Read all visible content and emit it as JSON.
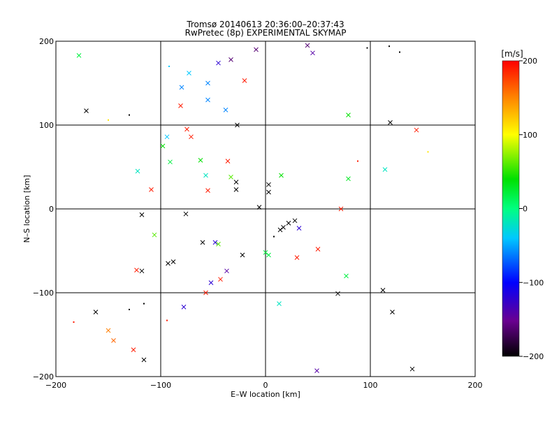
{
  "chart_data": {
    "type": "scatter",
    "title_line1": "Tromsø 20140613 20:36:00–20:37:43",
    "title_line2": "RwPretec (8p) EXPERIMENTAL SKYMAP",
    "xlabel": "E–W location [km]",
    "ylabel": "N–S location [km]",
    "xlim": [
      -200,
      200
    ],
    "ylim": [
      -200,
      200
    ],
    "x_ticks": [
      -200,
      -100,
      0,
      100,
      200
    ],
    "y_ticks": [
      -200,
      -100,
      0,
      100,
      200
    ],
    "x_tick_labels": [
      "−200",
      "−100",
      "0",
      "100",
      "200"
    ],
    "y_tick_labels": [
      "−200",
      "−100",
      "0",
      "100",
      "200"
    ],
    "grid": true,
    "colorbar": {
      "label": "[m/s]",
      "range": [
        -200,
        200
      ],
      "ticks": [
        200,
        100,
        0,
        -100,
        -200
      ],
      "tick_labels": [
        "200",
        "100",
        "0",
        "−100",
        "−200"
      ],
      "colormap": "rainbow: black-purple-blue-cyan-green-yellow-red"
    },
    "markers": [
      {
        "x": -178,
        "y": 183,
        "v": 20,
        "m": "x"
      },
      {
        "x": -171,
        "y": 117,
        "v": -200,
        "m": "x"
      },
      {
        "x": -150,
        "y": 106,
        "v": 110,
        "m": "dot"
      },
      {
        "x": -130,
        "y": 112,
        "v": -200,
        "m": "dot"
      },
      {
        "x": -109,
        "y": 23,
        "v": 190,
        "m": "x"
      },
      {
        "x": -106,
        "y": -31,
        "v": 60,
        "m": "x"
      },
      {
        "x": -118,
        "y": -7,
        "v": -200,
        "m": "x"
      },
      {
        "x": -123,
        "y": -73,
        "v": 190,
        "m": "x"
      },
      {
        "x": -118,
        "y": -74,
        "v": -200,
        "m": "x"
      },
      {
        "x": -93,
        "y": -65,
        "v": -200,
        "m": "x"
      },
      {
        "x": -88,
        "y": -63,
        "v": -200,
        "m": "x"
      },
      {
        "x": -76,
        "y": -6,
        "v": -200,
        "m": "x"
      },
      {
        "x": -162,
        "y": -123,
        "v": -200,
        "m": "x"
      },
      {
        "x": -145,
        "y": -157,
        "v": 160,
        "m": "x"
      },
      {
        "x": -126,
        "y": -168,
        "v": 190,
        "m": "x"
      },
      {
        "x": -150,
        "y": -145,
        "v": 150,
        "m": "x"
      },
      {
        "x": -183,
        "y": -135,
        "v": 190,
        "m": "dot"
      },
      {
        "x": -130,
        "y": -120,
        "v": -200,
        "m": "dot"
      },
      {
        "x": -116,
        "y": -180,
        "v": -200,
        "m": "x"
      },
      {
        "x": -116,
        "y": -113,
        "v": -200,
        "m": "dot"
      },
      {
        "x": -94,
        "y": -133,
        "v": 190,
        "m": "dot"
      },
      {
        "x": -78,
        "y": -117,
        "v": -120,
        "m": "x"
      },
      {
        "x": -81,
        "y": 123,
        "v": 190,
        "m": "x"
      },
      {
        "x": -80,
        "y": 145,
        "v": -60,
        "m": "x"
      },
      {
        "x": -92,
        "y": 170,
        "v": -40,
        "m": "dot"
      },
      {
        "x": -73,
        "y": 162,
        "v": -40,
        "m": "x"
      },
      {
        "x": -57,
        "y": -100,
        "v": 190,
        "m": "x"
      },
      {
        "x": -43,
        "y": -84,
        "v": 190,
        "m": "x"
      },
      {
        "x": -52,
        "y": -88,
        "v": -120,
        "m": "x"
      },
      {
        "x": -37,
        "y": -74,
        "v": -140,
        "m": "x"
      },
      {
        "x": -22,
        "y": -55,
        "v": -200,
        "m": "x"
      },
      {
        "x": -6,
        "y": 2,
        "v": -200,
        "m": "x"
      },
      {
        "x": 14,
        "y": -25,
        "v": -200,
        "m": "x"
      },
      {
        "x": 17,
        "y": -22,
        "v": -200,
        "m": "x"
      },
      {
        "x": 22,
        "y": -17,
        "v": -200,
        "m": "x"
      },
      {
        "x": 28,
        "y": -14,
        "v": -200,
        "m": "x"
      },
      {
        "x": 32,
        "y": -23,
        "v": -120,
        "m": "x"
      },
      {
        "x": 50,
        "y": -48,
        "v": 190,
        "m": "x"
      },
      {
        "x": 30,
        "y": -58,
        "v": 190,
        "m": "x"
      },
      {
        "x": 8,
        "y": -33,
        "v": -200,
        "m": "dot"
      },
      {
        "x": 0,
        "y": -52,
        "v": 20,
        "m": "x"
      },
      {
        "x": 3,
        "y": -55,
        "v": 20,
        "m": "x"
      },
      {
        "x": 13,
        "y": -113,
        "v": -20,
        "m": "x"
      },
      {
        "x": 69,
        "y": -101,
        "v": -200,
        "m": "x"
      },
      {
        "x": 49,
        "y": -193,
        "v": -140,
        "m": "x"
      },
      {
        "x": 140,
        "y": -191,
        "v": -200,
        "m": "x"
      },
      {
        "x": 121,
        "y": -123,
        "v": -200,
        "m": "x"
      },
      {
        "x": 112,
        "y": -97,
        "v": -200,
        "m": "x"
      },
      {
        "x": 77,
        "y": -80,
        "v": 20,
        "m": "x"
      },
      {
        "x": 72,
        "y": 0,
        "v": 190,
        "m": "x"
      },
      {
        "x": 114,
        "y": 47,
        "v": -20,
        "m": "x"
      },
      {
        "x": 79,
        "y": 36,
        "v": 30,
        "m": "x"
      },
      {
        "x": 144,
        "y": 94,
        "v": 190,
        "m": "x"
      },
      {
        "x": 119,
        "y": 103,
        "v": -200,
        "m": "x"
      },
      {
        "x": 88,
        "y": 57,
        "v": 190,
        "m": "dot"
      },
      {
        "x": 155,
        "y": 68,
        "v": 110,
        "m": "dot"
      },
      {
        "x": 79,
        "y": 112,
        "v": 40,
        "m": "x"
      },
      {
        "x": 118,
        "y": 194,
        "v": -200,
        "m": "dot"
      },
      {
        "x": 128,
        "y": 187,
        "v": -200,
        "m": "dot"
      },
      {
        "x": 97,
        "y": 192,
        "v": -200,
        "m": "dot"
      },
      {
        "x": 45,
        "y": 186,
        "v": -140,
        "m": "x"
      },
      {
        "x": 40,
        "y": 195,
        "v": -160,
        "m": "x"
      },
      {
        "x": -9,
        "y": 190,
        "v": -160,
        "m": "x"
      },
      {
        "x": -33,
        "y": 178,
        "v": -160,
        "m": "x"
      },
      {
        "x": -45,
        "y": 174,
        "v": -120,
        "m": "x"
      },
      {
        "x": -20,
        "y": 153,
        "v": 190,
        "m": "x"
      },
      {
        "x": -122,
        "y": 45,
        "v": -20,
        "m": "x"
      },
      {
        "x": -91,
        "y": 56,
        "v": 20,
        "m": "x"
      },
      {
        "x": -94,
        "y": 86,
        "v": -40,
        "m": "x"
      },
      {
        "x": -98,
        "y": 75,
        "v": 40,
        "m": "x"
      },
      {
        "x": -71,
        "y": 86,
        "v": 190,
        "m": "x"
      },
      {
        "x": -75,
        "y": 95,
        "v": 190,
        "m": "x"
      },
      {
        "x": -57,
        "y": 40,
        "v": -20,
        "m": "x"
      },
      {
        "x": -55,
        "y": 22,
        "v": 190,
        "m": "x"
      },
      {
        "x": -60,
        "y": -40,
        "v": -200,
        "m": "x"
      },
      {
        "x": -33,
        "y": 38,
        "v": 60,
        "m": "x"
      },
      {
        "x": -28,
        "y": 32,
        "v": -200,
        "m": "x"
      },
      {
        "x": -28,
        "y": 23,
        "v": -200,
        "m": "x"
      },
      {
        "x": -36,
        "y": 57,
        "v": 190,
        "m": "x"
      },
      {
        "x": 3,
        "y": 20,
        "v": -200,
        "m": "x"
      },
      {
        "x": 15,
        "y": 40,
        "v": 40,
        "m": "x"
      },
      {
        "x": 3,
        "y": 29,
        "v": -200,
        "m": "x"
      },
      {
        "x": -27,
        "y": 100,
        "v": -200,
        "m": "x"
      },
      {
        "x": -38,
        "y": 118,
        "v": -60,
        "m": "x"
      },
      {
        "x": -55,
        "y": 130,
        "v": -60,
        "m": "x"
      },
      {
        "x": -55,
        "y": 150,
        "v": -60,
        "m": "x"
      },
      {
        "x": -62,
        "y": 58,
        "v": 40,
        "m": "x"
      },
      {
        "x": -48,
        "y": -40,
        "v": -120,
        "m": "x"
      },
      {
        "x": -45,
        "y": -42,
        "v": 60,
        "m": "x"
      }
    ]
  }
}
